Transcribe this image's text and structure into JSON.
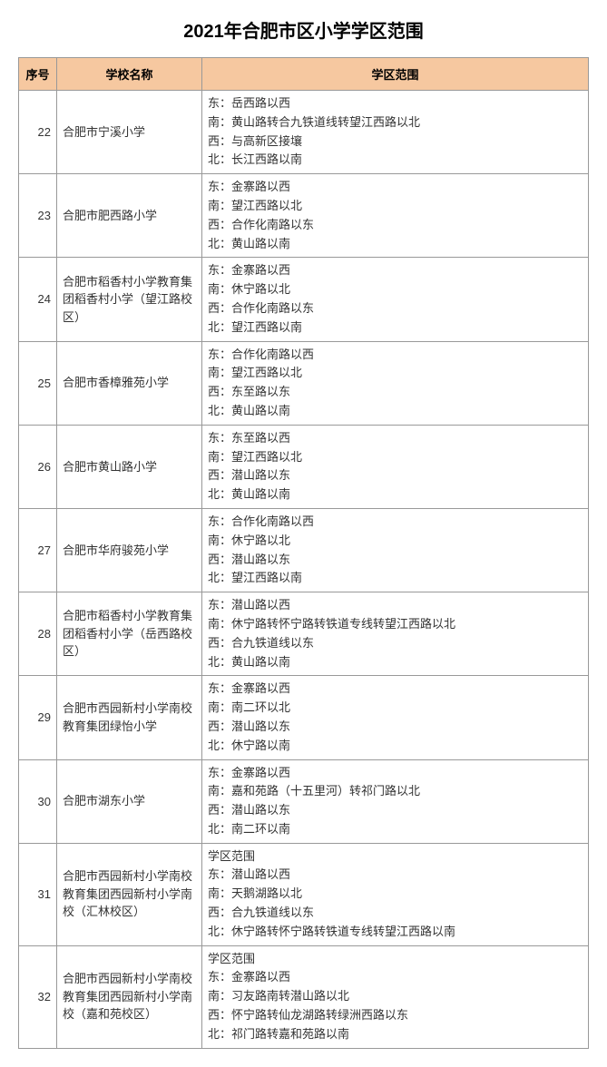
{
  "title": "2021年合肥市区小学学区范围",
  "colors": {
    "header_bg": "#f6c8a0",
    "border": "#999999",
    "text": "#333333",
    "background": "#ffffff"
  },
  "columns": {
    "num": "序号",
    "name": "学校名称",
    "range": "学区范围"
  },
  "rows": [
    {
      "num": "22",
      "name": "合肥市宁溪小学",
      "range": [
        "东：岳西路以西",
        "南：黄山路转合九铁道线转望江西路以北",
        "西：与高新区接壤",
        "北：长江西路以南"
      ]
    },
    {
      "num": "23",
      "name": "合肥市肥西路小学",
      "range": [
        "东：金寨路以西",
        "南：望江西路以北",
        "西：合作化南路以东",
        "北：黄山路以南"
      ]
    },
    {
      "num": "24",
      "name": "合肥市稻香村小学教育集团稻香村小学（望江路校区）",
      "range": [
        "东：金寨路以西",
        "南：休宁路以北",
        "西：合作化南路以东",
        "北：望江西路以南"
      ]
    },
    {
      "num": "25",
      "name": "合肥市香樟雅苑小学",
      "range": [
        "东：合作化南路以西",
        "南：望江西路以北",
        "西：东至路以东",
        "北：黄山路以南"
      ]
    },
    {
      "num": "26",
      "name": "合肥市黄山路小学",
      "range": [
        "东：东至路以西",
        "南：望江西路以北",
        "西：潜山路以东",
        "北：黄山路以南"
      ]
    },
    {
      "num": "27",
      "name": "合肥市华府骏苑小学",
      "range": [
        "东：合作化南路以西",
        "南：休宁路以北",
        "西：潜山路以东",
        "北：望江西路以南"
      ]
    },
    {
      "num": "28",
      "name": "合肥市稻香村小学教育集团稻香村小学（岳西路校区）",
      "range": [
        "东：潜山路以西",
        "南：休宁路转怀宁路转铁道专线转望江西路以北",
        "西：合九铁道线以东",
        "北：黄山路以南"
      ]
    },
    {
      "num": "29",
      "name": "合肥市西园新村小学南校教育集团绿怡小学",
      "range": [
        "东：金寨路以西",
        "南：南二环以北",
        "西：潜山路以东",
        "北：休宁路以南"
      ]
    },
    {
      "num": "30",
      "name": "合肥市湖东小学",
      "range": [
        "东：金寨路以西",
        "南：嘉和苑路（十五里河）转祁门路以北",
        "西：潜山路以东",
        "北：南二环以南"
      ]
    },
    {
      "num": "31",
      "name": "合肥市西园新村小学南校教育集团西园新村小学南校（汇林校区）",
      "range": [
        "学区范围",
        "东：潜山路以西",
        "南：天鹅湖路以北",
        "西：合九铁道线以东",
        "北：休宁路转怀宁路转铁道专线转望江西路以南"
      ]
    },
    {
      "num": "32",
      "name": "合肥市西园新村小学南校教育集团西园新村小学南校（嘉和苑校区）",
      "range": [
        "学区范围",
        "东：金寨路以西",
        "南：习友路南转潜山路以北",
        "西：怀宁路转仙龙湖路转绿洲西路以东",
        "北：祁门路转嘉和苑路以南"
      ]
    }
  ]
}
